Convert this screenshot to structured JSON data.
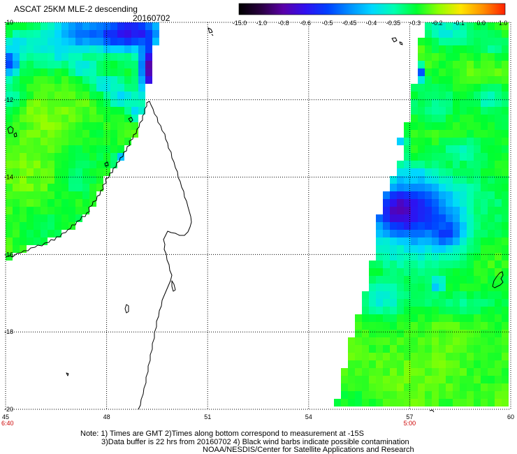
{
  "title": "ASCAT 25KM MLE-2 descending",
  "date": "20160702",
  "colorbar": {
    "labels": [
      "-15.0",
      "-1.0",
      "-0.8",
      "-0.6",
      "-0.5",
      "-0.45",
      "-0.4",
      "-0.35",
      "-0.3",
      "-0.2",
      "-0.1",
      "0.0",
      "1.0"
    ],
    "colors": [
      "#000000",
      "#2a0040",
      "#5a00a8",
      "#3010f0",
      "#0040ff",
      "#0090ff",
      "#00d8ff",
      "#00ffb0",
      "#00ff30",
      "#90ff00",
      "#ffe600",
      "#ff9000",
      "#ff2000"
    ]
  },
  "map": {
    "lat_ticks": [
      "-10",
      "-12",
      "-14",
      "-16",
      "-18",
      "-20"
    ],
    "lon_ticks": [
      {
        "label": "45",
        "time": "6:40"
      },
      {
        "label": "48"
      },
      {
        "label": "51"
      },
      {
        "label": "54"
      },
      {
        "label": "57",
        "time": "5:00"
      },
      {
        "label": "60"
      }
    ]
  },
  "notes": [
    "Note: 1) Times are GMT 2)Times along bottom correspond to measurement at -15S",
    "3)Data buffer is 22 hrs from 20160702 4) Black wind barbs indicate possible contamination",
    "NOAA/NESDIS/Center for Satellite Applications and Research"
  ],
  "colors": {
    "time_label": "#cc0000",
    "coastline": "#000000",
    "grid": "#000000",
    "background": "#ffffff"
  }
}
